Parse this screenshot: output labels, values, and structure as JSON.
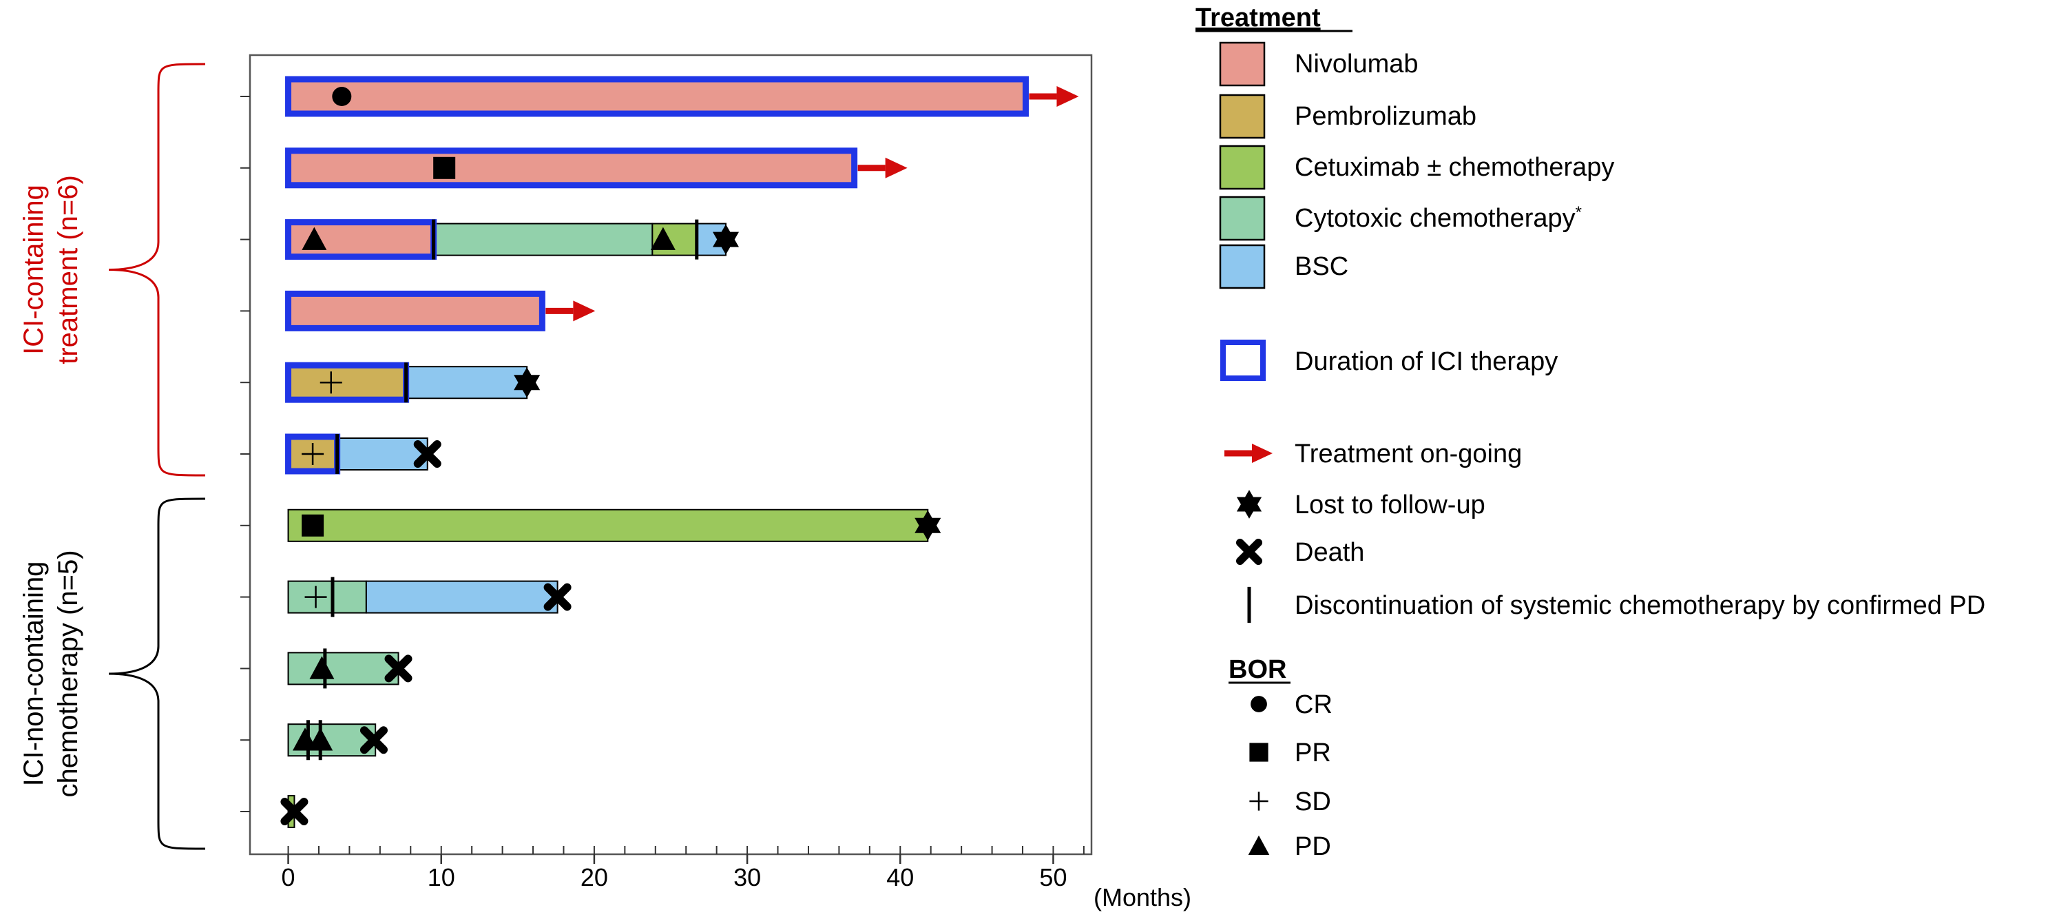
{
  "chart_data": {
    "type": "swimmer",
    "x_unit_label": "(Months)",
    "xlim": [
      -2.5,
      52.5
    ],
    "x_ticks": [
      0,
      10,
      20,
      30,
      40,
      50
    ],
    "x_minor_step": 2,
    "groups": [
      {
        "label_lines": [
          "ICI-containing",
          "treatment (n=6)"
        ],
        "color": "#cc0000",
        "rows": [
          0,
          5
        ]
      },
      {
        "label_lines": [
          "ICI-non-containing",
          "chemotherapy (n=5)"
        ],
        "color": "#000000",
        "rows": [
          6,
          10
        ]
      }
    ],
    "colors": {
      "Nivolumab": "#e8998f",
      "Pembrolizumab": "#cdb058",
      "Cetuximab": "#9bc85c",
      "Cytotoxic": "#92d1ab",
      "BSC": "#8ec7ef",
      "ici_frame": "#2036e6",
      "arrow": "#d20c0c"
    },
    "patients": [
      {
        "segments": [
          {
            "tx": "Nivolumab",
            "start": 0,
            "end": 48.2
          }
        ],
        "ici": [
          0,
          48.2
        ],
        "ongoing": true,
        "markers": [
          {
            "type": "CR",
            "x": 3.5
          }
        ]
      },
      {
        "segments": [
          {
            "tx": "Nivolumab",
            "start": 0,
            "end": 37.0
          }
        ],
        "ici": [
          0,
          37.0
        ],
        "ongoing": true,
        "markers": [
          {
            "type": "PR",
            "x": 10.2
          }
        ]
      },
      {
        "segments": [
          {
            "tx": "Nivolumab",
            "start": 0,
            "end": 9.5
          },
          {
            "tx": "Cytotoxic",
            "start": 9.5,
            "end": 23.8
          },
          {
            "tx": "Cetuximab",
            "start": 23.8,
            "end": 26.7
          },
          {
            "tx": "BSC",
            "start": 26.7,
            "end": 28.6
          }
        ],
        "ici": [
          0,
          9.5
        ],
        "ongoing": false,
        "markers": [
          {
            "type": "PD",
            "x": 1.7
          },
          {
            "type": "PD",
            "x": 24.5
          },
          {
            "type": "disc",
            "x": 9.5
          },
          {
            "type": "disc",
            "x": 26.7
          },
          {
            "type": "lost",
            "x": 28.6
          }
        ]
      },
      {
        "segments": [
          {
            "tx": "Nivolumab",
            "start": 0,
            "end": 16.6
          }
        ],
        "ici": [
          0,
          16.6
        ],
        "ongoing": true,
        "markers": []
      },
      {
        "segments": [
          {
            "tx": "Pembrolizumab",
            "start": 0,
            "end": 7.7
          },
          {
            "tx": "BSC",
            "start": 7.7,
            "end": 15.6
          }
        ],
        "ici": [
          0,
          7.7
        ],
        "ongoing": false,
        "markers": [
          {
            "type": "SD",
            "x": 2.8
          },
          {
            "type": "disc",
            "x": 7.7
          },
          {
            "type": "lost",
            "x": 15.6
          }
        ]
      },
      {
        "segments": [
          {
            "tx": "Pembrolizumab",
            "start": 0,
            "end": 3.2
          },
          {
            "tx": "BSC",
            "start": 3.2,
            "end": 9.1
          }
        ],
        "ici": [
          0,
          3.2
        ],
        "ongoing": false,
        "markers": [
          {
            "type": "SD",
            "x": 1.6
          },
          {
            "type": "disc",
            "x": 3.2
          },
          {
            "type": "death",
            "x": 9.1
          }
        ]
      },
      {
        "segments": [
          {
            "tx": "Cetuximab",
            "start": 0,
            "end": 41.8
          }
        ],
        "ici": null,
        "ongoing": false,
        "markers": [
          {
            "type": "PR",
            "x": 1.6
          },
          {
            "type": "lost",
            "x": 41.8
          }
        ]
      },
      {
        "segments": [
          {
            "tx": "Cytotoxic",
            "start": 0,
            "end": 5.1
          },
          {
            "tx": "BSC",
            "start": 5.1,
            "end": 17.6
          }
        ],
        "ici": null,
        "ongoing": false,
        "markers": [
          {
            "type": "SD",
            "x": 1.8
          },
          {
            "type": "disc",
            "x": 2.9
          },
          {
            "type": "death",
            "x": 17.6
          }
        ]
      },
      {
        "segments": [
          {
            "tx": "Cytotoxic",
            "start": 0,
            "end": 7.2
          }
        ],
        "ici": null,
        "ongoing": false,
        "markers": [
          {
            "type": "PD",
            "x": 2.2
          },
          {
            "type": "disc",
            "x": 2.4
          },
          {
            "type": "death",
            "x": 7.2
          }
        ]
      },
      {
        "segments": [
          {
            "tx": "Cytotoxic",
            "start": 0,
            "end": 5.7
          }
        ],
        "ici": null,
        "ongoing": false,
        "markers": [
          {
            "type": "PD",
            "x": 1.1
          },
          {
            "type": "PD",
            "x": 2.1
          },
          {
            "type": "disc",
            "x": 1.3
          },
          {
            "type": "disc",
            "x": 2.1
          },
          {
            "type": "death",
            "x": 5.6
          }
        ]
      },
      {
        "segments": [
          {
            "tx": "Cetuximab",
            "start": 0,
            "end": 0.4
          }
        ],
        "ici": null,
        "ongoing": false,
        "markers": [
          {
            "type": "death",
            "x": 0.4
          }
        ]
      }
    ],
    "legend": {
      "treatment_title": "Treatment",
      "treatments": [
        {
          "key": "Nivolumab",
          "label": "Nivolumab"
        },
        {
          "key": "Pembrolizumab",
          "label": "Pembrolizumab"
        },
        {
          "key": "Cetuximab",
          "label": "Cetuximab ± chemotherapy"
        },
        {
          "key": "Cytotoxic",
          "label": "Cytotoxic chemotherapy",
          "sup": "*"
        },
        {
          "key": "BSC",
          "label": "BSC"
        }
      ],
      "ici_label": "Duration of ICI therapy",
      "events": [
        {
          "type": "ongoing",
          "label": "Treatment on-going"
        },
        {
          "type": "lost",
          "label": "Lost to follow-up"
        },
        {
          "type": "death",
          "label": "Death"
        },
        {
          "type": "disc",
          "label": "Discontinuation of systemic chemotherapy by confirmed PD"
        }
      ],
      "bor_title": "BOR",
      "bor": [
        {
          "type": "CR",
          "label": "CR"
        },
        {
          "type": "PR",
          "label": "PR"
        },
        {
          "type": "SD",
          "label": "SD"
        },
        {
          "type": "PD",
          "label": "PD"
        }
      ]
    }
  }
}
